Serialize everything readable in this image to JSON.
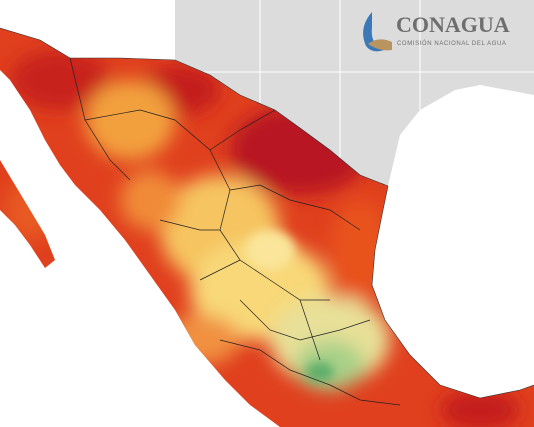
{
  "logo": {
    "name": "CONAGUA",
    "subtitle": "COMISIÓN NACIONAL DEL AGUA"
  }
}
